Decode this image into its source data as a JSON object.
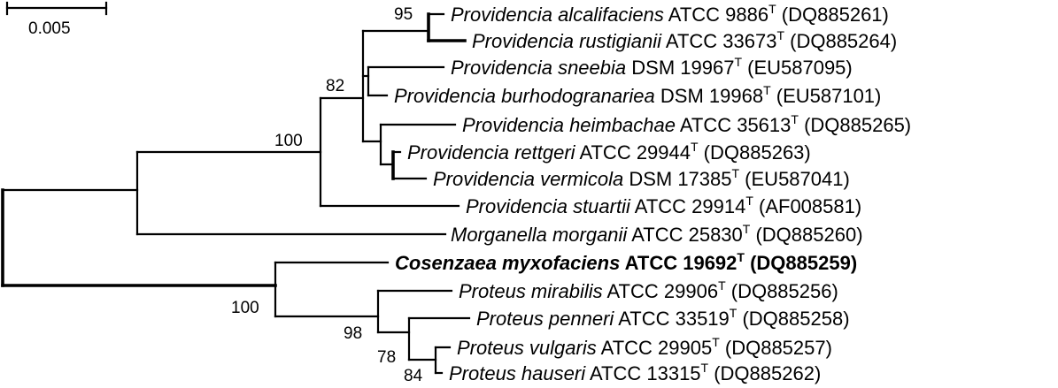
{
  "scale": {
    "label": "0.005"
  },
  "taxa": [
    {
      "species": "Providencia alcalifaciens",
      "strain": " ATCC 9886",
      "sup": "T",
      "acc": " (DQ885261)",
      "bold": false
    },
    {
      "species": "Providencia rustigianii",
      "strain": " ATCC 33673",
      "sup": "T",
      "acc": " (DQ885264)",
      "bold": false
    },
    {
      "species": "Providencia sneebia",
      "strain": " DSM 19967",
      "sup": "T",
      "acc": " (EU587095)",
      "bold": false
    },
    {
      "species": "Providencia burhodogranariea",
      "strain": " DSM 19968",
      "sup": "T",
      "acc": " (EU587101)",
      "bold": false
    },
    {
      "species": "Providencia heimbachae",
      "strain": " ATCC 35613",
      "sup": "T",
      "acc": " (DQ885265)",
      "bold": false
    },
    {
      "species": "Providencia rettgeri",
      "strain": " ATCC 29944",
      "sup": "T",
      "acc": " (DQ885263)",
      "bold": false
    },
    {
      "species": "Providencia vermicola",
      "strain": " DSM 17385",
      "sup": "T",
      "acc": " (EU587041)",
      "bold": false
    },
    {
      "species": "Providencia stuartii",
      "strain": " ATCC 29914",
      "sup": "T",
      "acc": " (AF008581)",
      "bold": false
    },
    {
      "species": "Morganella morganii",
      "strain": " ATCC 25830",
      "sup": "T",
      "acc": " (DQ885260)",
      "bold": false
    },
    {
      "species": "Cosenzaea myxofaciens",
      "strain": " ATCC 19692",
      "sup": "T",
      "acc": " (DQ885259)",
      "bold": true
    },
    {
      "species": "Proteus mirabilis",
      "strain": " ATCC 29906",
      "sup": "T",
      "acc": " (DQ885256)",
      "bold": false
    },
    {
      "species": "Proteus penneri",
      "strain": " ATCC 33519",
      "sup": "T",
      "acc": " (DQ885258)",
      "bold": false
    },
    {
      "species": "Proteus vulgaris",
      "strain": " ATCC 29905",
      "sup": "T",
      "acc": " (DQ885257)",
      "bold": false
    },
    {
      "species": "Proteus hauseri",
      "strain": " ATCC 13315",
      "sup": "T",
      "acc": " (DQ885262)",
      "bold": false
    }
  ],
  "bootstrap": [
    {
      "value": "95"
    },
    {
      "value": "82"
    },
    {
      "value": "100"
    },
    {
      "value": "100"
    },
    {
      "value": "98"
    },
    {
      "value": "78"
    },
    {
      "value": "84"
    }
  ]
}
